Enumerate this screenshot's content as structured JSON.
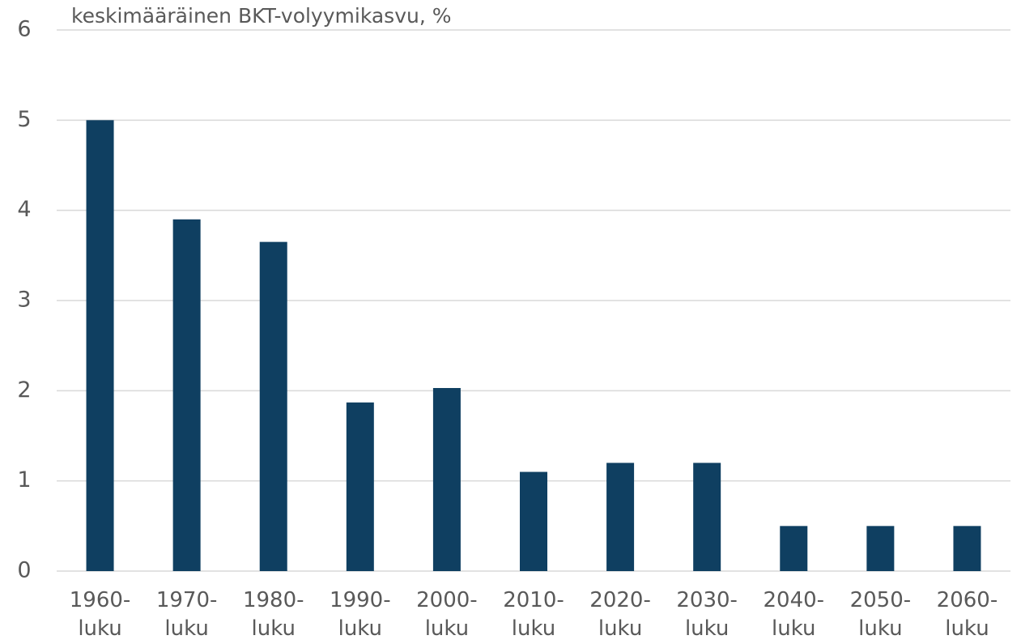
{
  "chart_data": {
    "type": "bar",
    "title": "keskimääräinen BKT-volyymikasvu, %",
    "categories": [
      "1960-luku",
      "1970-luku",
      "1980-luku",
      "1990-luku",
      "2000-luku",
      "2010-luku",
      "2020-luku",
      "2030-luku",
      "2040-luku",
      "2050-luku",
      "2060-luku"
    ],
    "values": [
      5,
      3.9,
      3.65,
      1.87,
      2.03,
      1.1,
      1.2,
      1.2,
      0.5,
      0.5,
      0.5
    ],
    "color": "#0f3f61",
    "ylim": [
      0,
      6
    ],
    "yticks": [
      0,
      1,
      2,
      3,
      4,
      5,
      6
    ],
    "grid": true
  }
}
